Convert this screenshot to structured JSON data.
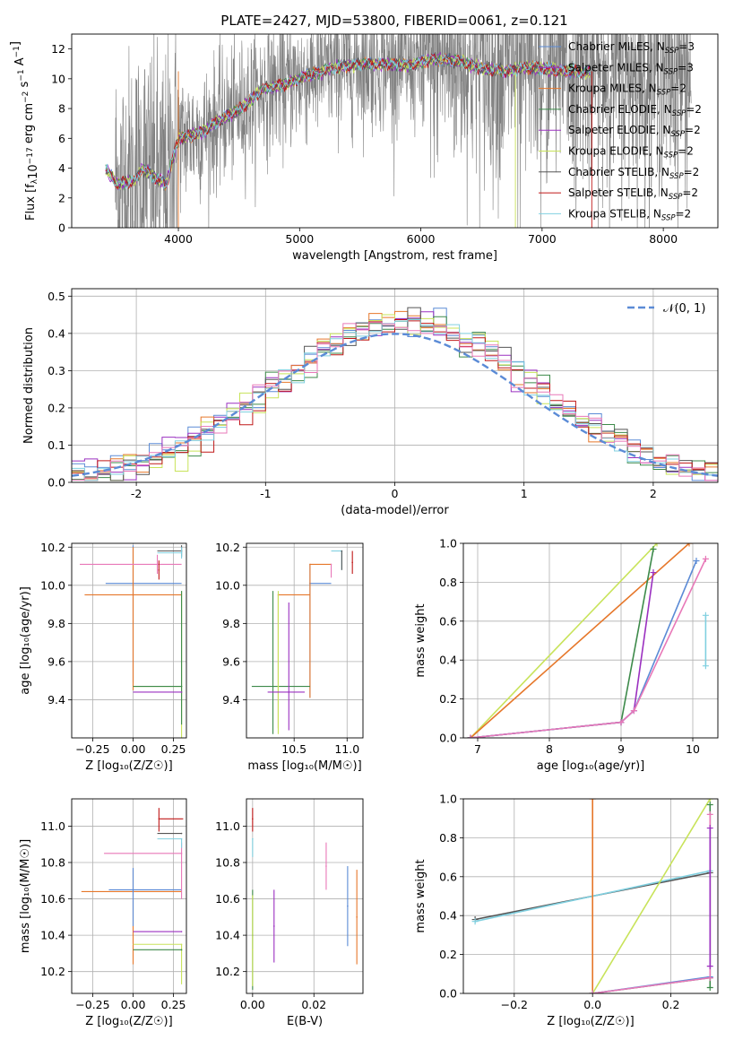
{
  "title": "PLATE=2427, MJD=53800, FIBERID=0061, z=0.121",
  "colors": {
    "chabrier_miles": "#5b8bd6",
    "salpeter_miles": "#9b30c0",
    "kroupa_miles": "#e6772a",
    "chabrier_elodie": "#3d8a4a",
    "salpeter_elodie": "#9b30c0",
    "kroupa_elodie": "#c8e35a",
    "chabrier_stelib": "#555555",
    "salpeter_stelib": "#c01818",
    "kroupa_stelib": "#80d0e0",
    "pink": "#e878b8",
    "data": "#808080",
    "normal": "#5b8bd6"
  },
  "chart_data": [
    {
      "id": "spectrum",
      "type": "line",
      "title": "PLATE=2427, MJD=53800, FIBERID=0061, z=0.121",
      "xlabel": "wavelength [Angstrom, rest frame]",
      "ylabel_parts": [
        "Flux [f",
        "λ",
        "10",
        "−17",
        " erg cm",
        "−2",
        " s",
        "−1",
        " A",
        "−1",
        "]"
      ],
      "xlim": [
        3120,
        8450
      ],
      "ylim": [
        0,
        13
      ],
      "xticks": [
        4000,
        5000,
        6000,
        7000,
        8000
      ],
      "yticks": [
        0,
        2,
        4,
        6,
        8,
        10,
        12
      ],
      "legend": [
        {
          "label": "Chabrier MILES, N",
          "sub": "SSP",
          "tail": "=3",
          "color": "#5b8bd6"
        },
        {
          "label": "Salpeter MILES, N",
          "sub": "SSP",
          "tail": "=3",
          "color": "#9b30c0"
        },
        {
          "label": "Kroupa MILES, N",
          "sub": "SSP",
          "tail": "=2",
          "color": "#e6772a"
        },
        {
          "label": "Chabrier ELODIE, N",
          "sub": "SSP",
          "tail": "=2",
          "color": "#3d8a4a"
        },
        {
          "label": "Salpeter ELODIE, N",
          "sub": "SSP",
          "tail": "=2",
          "color": "#9b30c0"
        },
        {
          "label": "Kroupa ELODIE, N",
          "sub": "SSP",
          "tail": "=2",
          "color": "#c8e35a"
        },
        {
          "label": "Chabrier STELIB, N",
          "sub": "SSP",
          "tail": "=2",
          "color": "#555555"
        },
        {
          "label": "Salpeter STELIB, N",
          "sub": "SSP",
          "tail": "=2",
          "color": "#c01818"
        },
        {
          "label": "Kroupa STELIB, N",
          "sub": "SSP",
          "tail": "=2",
          "color": "#80d0e0"
        }
      ],
      "data_range": [
        3480,
        8230
      ],
      "model_profile": {
        "x": [
          3400,
          3500,
          3650,
          3700,
          3800,
          3900,
          4000,
          4100,
          4200,
          4300,
          4400,
          4500,
          4700,
          4900,
          5100,
          5300,
          5500,
          5700,
          5900,
          6100,
          6300,
          6500,
          6700,
          6900,
          7100,
          7300,
          7400
        ],
        "y": [
          3.9,
          2.9,
          3.2,
          4.0,
          3.4,
          2.9,
          6.0,
          6.2,
          6.4,
          7.0,
          7.5,
          7.9,
          9.3,
          9.7,
          10.3,
          10.8,
          11.0,
          11.0,
          10.9,
          11.3,
          11.2,
          10.7,
          10.5,
          10.8,
          10.6,
          10.5,
          10.4
        ]
      }
    },
    {
      "id": "residuals",
      "type": "histogram",
      "xlabel": "(data-model)/error",
      "ylabel": "Normed distribution",
      "xlim": [
        -2.5,
        2.5
      ],
      "ylim": [
        0,
        0.52
      ],
      "xticks": [
        -2,
        -1,
        0,
        1,
        2
      ],
      "yticks": [
        0.0,
        0.1,
        0.2,
        0.3,
        0.4,
        0.5
      ],
      "legend": [
        {
          "label": "𝒩(0, 1)",
          "color": "#5b8bd6"
        }
      ],
      "bin_width": 0.1
    },
    {
      "id": "age_vs_Z",
      "type": "scatter",
      "xlabel": "Z [log₁₀(Z/Z☉)]",
      "ylabel": "age  [log₁₀(age/yr)]",
      "xlim": [
        -0.38,
        0.33
      ],
      "ylim": [
        9.2,
        10.22
      ],
      "xticks": [
        -0.25,
        0.0,
        0.25
      ],
      "xticklabels": [
        "−0.25",
        "0.00",
        "0.25"
      ],
      "yticks": [
        9.4,
        9.6,
        9.8,
        10.0,
        10.2
      ],
      "points": [
        {
          "x": 0.0,
          "y": 10.01,
          "xerr": [
            0.17,
            0.3
          ],
          "yerr": [
            0.52,
            0.2
          ],
          "color": "#5b8bd6"
        },
        {
          "x": 0.0,
          "y": 9.95,
          "xerr": [
            0.3,
            0.3
          ],
          "yerr": [
            0.5,
            0.25
          ],
          "color": "#e6772a"
        },
        {
          "x": 0.15,
          "y": 10.11,
          "xerr": [
            0.48,
            0.15
          ],
          "yerr": [
            0.05,
            0.05
          ],
          "color": "#e878b8"
        },
        {
          "x": 0.3,
          "y": 10.18,
          "xerr": [
            0.15,
            0.0
          ],
          "yerr": [
            0.03,
            0.03
          ],
          "color": "#555555"
        },
        {
          "x": 0.3,
          "y": 10.17,
          "xerr": [
            0.15,
            0.0
          ],
          "yerr": [
            0.03,
            0.03
          ],
          "color": "#80d0e0"
        },
        {
          "x": 0.16,
          "y": 10.08,
          "xerr": [
            0.0,
            0.0
          ],
          "yerr": [
            0.05,
            0.05
          ],
          "color": "#c01818"
        },
        {
          "x": 0.3,
          "y": 9.47,
          "xerr": [
            0.3,
            0.0
          ],
          "yerr": [
            0.3,
            0.5
          ],
          "color": "#c8e35a"
        },
        {
          "x": 0.3,
          "y": 9.47,
          "xerr": [
            0.3,
            0.0
          ],
          "yerr": [
            0.2,
            0.5
          ],
          "color": "#3d8a4a"
        },
        {
          "x": 0.3,
          "y": 9.44,
          "xerr": [
            0.3,
            0.0
          ],
          "yerr": [
            0.0,
            0.0
          ],
          "color": "#9b30c0"
        }
      ]
    },
    {
      "id": "age_vs_mass",
      "type": "scatter",
      "xlabel": "mass [log₁₀(M/M☉)]",
      "ylabel": "",
      "xlim": [
        10.05,
        11.15
      ],
      "ylim": [
        9.2,
        10.22
      ],
      "xticks": [
        10.5,
        11.0
      ],
      "xticklabels": [
        "10.5",
        "11.0"
      ],
      "yticks": [
        9.4,
        9.6,
        9.8,
        10.0,
        10.2
      ],
      "points": [
        {
          "x": 10.65,
          "y": 10.01,
          "xerr": [
            0.0,
            0.2
          ],
          "yerr": [
            0.6,
            0.1
          ],
          "color": "#5b8bd6"
        },
        {
          "x": 10.35,
          "y": 9.95,
          "xerr": [
            0.0,
            0.3
          ],
          "yerr": [
            0.7,
            0.0
          ],
          "color": "#e6772a"
        },
        {
          "x": 10.65,
          "y": 10.11,
          "xerr": [
            0.0,
            0.2
          ],
          "yerr": [
            0.7,
            0.0
          ],
          "color": "#e6772a"
        },
        {
          "x": 10.85,
          "y": 10.11,
          "xerr": [
            0.0,
            0.0
          ],
          "yerr": [
            0.07,
            0.0
          ],
          "color": "#e878b8"
        },
        {
          "x": 10.95,
          "y": 10.18,
          "xerr": [
            0.1,
            0.0
          ],
          "yerr": [
            0.1,
            0.0
          ],
          "color": "#80d0e0"
        },
        {
          "x": 11.05,
          "y": 10.12,
          "xerr": [
            0.0,
            0.0
          ],
          "yerr": [
            0.06,
            0.06
          ],
          "color": "#c01818"
        },
        {
          "x": 10.95,
          "y": 10.18,
          "xerr": [
            0.0,
            0.0
          ],
          "yerr": [
            0.1,
            0.0
          ],
          "color": "#555555"
        },
        {
          "x": 10.3,
          "y": 9.47,
          "xerr": [
            0.2,
            0.35
          ],
          "yerr": [
            0.25,
            0.5
          ],
          "color": "#3d8a4a"
        },
        {
          "x": 10.35,
          "y": 9.47,
          "xerr": [
            0.0,
            0.0
          ],
          "yerr": [
            0.25,
            0.5
          ],
          "color": "#c8e35a"
        },
        {
          "x": 10.45,
          "y": 9.44,
          "xerr": [
            0.2,
            0.15
          ],
          "yerr": [
            0.2,
            0.47
          ],
          "color": "#9b30c0"
        }
      ]
    },
    {
      "id": "mass_weight_vs_age",
      "type": "line",
      "xlabel": "age  [log₁₀(age/yr)]",
      "ylabel": "mass weight",
      "xlim": [
        6.8,
        10.35
      ],
      "ylim": [
        0,
        1
      ],
      "xticks": [
        7,
        8,
        9,
        10
      ],
      "yticks": [
        0.0,
        0.2,
        0.4,
        0.6,
        0.8,
        1.0
      ],
      "series": [
        {
          "x": [
            6.9,
            9.5
          ],
          "y": [
            0.0,
            1.0
          ],
          "color": "#c8e35a"
        },
        {
          "x": [
            6.9,
            9.95
          ],
          "y": [
            0.0,
            1.0
          ],
          "color": "#e6772a"
        },
        {
          "x": [
            6.9,
            9.0,
            9.45
          ],
          "y": [
            0.0,
            0.08,
            0.97
          ],
          "color": "#3d8a4a"
        },
        {
          "x": [
            6.9,
            9.0,
            9.18,
            9.45
          ],
          "y": [
            0.0,
            0.08,
            0.14,
            0.85
          ],
          "color": "#9b30c0"
        },
        {
          "x": [
            6.9,
            9.0,
            9.18,
            10.05
          ],
          "y": [
            0.0,
            0.08,
            0.14,
            0.91
          ],
          "color": "#5b8bd6"
        },
        {
          "x": [
            6.9,
            9.0,
            9.18,
            10.18
          ],
          "y": [
            0.0,
            0.08,
            0.14,
            0.92
          ],
          "color": "#e878b8"
        },
        {
          "x": [
            10.18,
            10.18
          ],
          "y": [
            0.37,
            0.63
          ],
          "color": "#80d0e0"
        }
      ]
    },
    {
      "id": "mass_vs_Z",
      "type": "scatter",
      "xlabel": "Z [log₁₀(Z/Z☉)]",
      "ylabel": "mass [log₁₀(M/M☉)]",
      "xlim": [
        -0.38,
        0.33
      ],
      "ylim": [
        10.08,
        11.15
      ],
      "xticks": [
        -0.25,
        0.0,
        0.25
      ],
      "xticklabels": [
        "−0.25",
        "0.00",
        "0.25"
      ],
      "yticks": [
        10.2,
        10.4,
        10.6,
        10.8,
        11.0
      ],
      "points": [
        {
          "x": 0.0,
          "y": 10.64,
          "xerr": [
            0.32,
            0.3
          ],
          "yerr": [
            0.4,
            0.12
          ],
          "color": "#e6772a"
        },
        {
          "x": 0.0,
          "y": 10.65,
          "xerr": [
            0.15,
            0.3
          ],
          "yerr": [
            0.2,
            0.12
          ],
          "color": "#5b8bd6"
        },
        {
          "x": 0.3,
          "y": 10.85,
          "xerr": [
            0.48,
            0.0
          ],
          "yerr": [
            0.25,
            0.06
          ],
          "color": "#e878b8"
        },
        {
          "x": 0.16,
          "y": 11.04,
          "xerr": [
            0.0,
            0.15
          ],
          "yerr": [
            0.07,
            0.06
          ],
          "color": "#c01818"
        },
        {
          "x": 0.3,
          "y": 10.96,
          "xerr": [
            0.15,
            0.0
          ],
          "yerr": [
            0.0,
            0.0
          ],
          "color": "#555555"
        },
        {
          "x": 0.3,
          "y": 10.93,
          "xerr": [
            0.15,
            0.0
          ],
          "yerr": [
            0.05,
            0.0
          ],
          "color": "#80d0e0"
        },
        {
          "x": 0.3,
          "y": 10.42,
          "xerr": [
            0.3,
            0.0
          ],
          "yerr": [
            0.0,
            0.0
          ],
          "color": "#9b30c0"
        },
        {
          "x": 0.3,
          "y": 10.35,
          "xerr": [
            0.3,
            0.0
          ],
          "yerr": [
            0.22,
            0.0
          ],
          "color": "#c8e35a"
        },
        {
          "x": 0.3,
          "y": 10.32,
          "xerr": [
            0.3,
            0.0
          ],
          "yerr": [
            0.0,
            0.0
          ],
          "color": "#3d8a4a"
        }
      ]
    },
    {
      "id": "mass_vs_ebv",
      "type": "scatter",
      "xlabel": "E(B-V)",
      "ylabel": "",
      "xlim": [
        -0.002,
        0.036
      ],
      "ylim": [
        10.08,
        11.15
      ],
      "xticks": [
        0.0,
        0.02
      ],
      "xticklabels": [
        "0.00",
        "0.02"
      ],
      "yticks": [
        10.2,
        10.4,
        10.6,
        10.8,
        11.0
      ],
      "points": [
        {
          "x": 0.0,
          "y": 11.04,
          "yerr": [
            0.07,
            0.06
          ],
          "color": "#c01818"
        },
        {
          "x": 0.0,
          "y": 10.93,
          "yerr": [
            0.1,
            0.0
          ],
          "color": "#80d0e0"
        },
        {
          "x": 0.0,
          "y": 10.4,
          "yerr": [
            0.3,
            0.25
          ],
          "color": "#3d8a4a"
        },
        {
          "x": 0.0,
          "y": 10.32,
          "yerr": [
            0.2,
            0.3
          ],
          "color": "#c8e35a"
        },
        {
          "x": 0.007,
          "y": 10.45,
          "yerr": [
            0.2,
            0.2
          ],
          "color": "#9b30c0"
        },
        {
          "x": 0.024,
          "y": 10.78,
          "yerr": [
            0.13,
            0.13
          ],
          "color": "#e878b8"
        },
        {
          "x": 0.031,
          "y": 10.56,
          "yerr": [
            0.22,
            0.22
          ],
          "color": "#5b8bd6"
        },
        {
          "x": 0.034,
          "y": 10.5,
          "yerr": [
            0.26,
            0.26
          ],
          "color": "#e6772a"
        }
      ]
    },
    {
      "id": "mass_weight_vs_Z",
      "type": "line",
      "xlabel": "Z [log₁₀(Z/Z☉)]",
      "ylabel": "mass weight",
      "xlim": [
        -0.33,
        0.32
      ],
      "ylim": [
        0,
        1
      ],
      "xticks": [
        -0.2,
        0.0,
        0.2
      ],
      "xticklabels": [
        "−0.2",
        "0.0",
        "0.2"
      ],
      "yticks": [
        0.0,
        0.2,
        0.4,
        0.6,
        0.8,
        1.0
      ],
      "series": [
        {
          "x": [
            -0.3,
            0.3
          ],
          "y": [
            0.38,
            0.62
          ],
          "color": "#555555"
        },
        {
          "x": [
            -0.3,
            0.3
          ],
          "y": [
            0.37,
            0.63
          ],
          "color": "#80d0e0"
        },
        {
          "x": [
            0.0,
            0.0
          ],
          "y": [
            0.0,
            1.0
          ],
          "color": "#e6772a"
        },
        {
          "x": [
            0.0,
            0.3
          ],
          "y": [
            0.0,
            1.0
          ],
          "color": "#c8e35a"
        },
        {
          "x": [
            0.0,
            0.3
          ],
          "y": [
            0.0,
            0.08
          ],
          "color": "#3d8a4a"
        },
        {
          "x": [
            0.0,
            0.3
          ],
          "y": [
            0.0,
            0.085
          ],
          "color": "#5b8bd6"
        },
        {
          "x": [
            0.0,
            0.3
          ],
          "y": [
            0.0,
            0.08
          ],
          "color": "#e878b8"
        },
        {
          "x": [
            0.3,
            0.3
          ],
          "y": [
            0.03,
            0.97
          ],
          "color": "#3d8a4a"
        },
        {
          "x": [
            0.3,
            0.3
          ],
          "y": [
            0.08,
            0.92
          ],
          "color": "#e878b8"
        },
        {
          "x": [
            0.3,
            0.3
          ],
          "y": [
            0.14,
            0.85
          ],
          "color": "#9b30c0"
        }
      ]
    }
  ]
}
